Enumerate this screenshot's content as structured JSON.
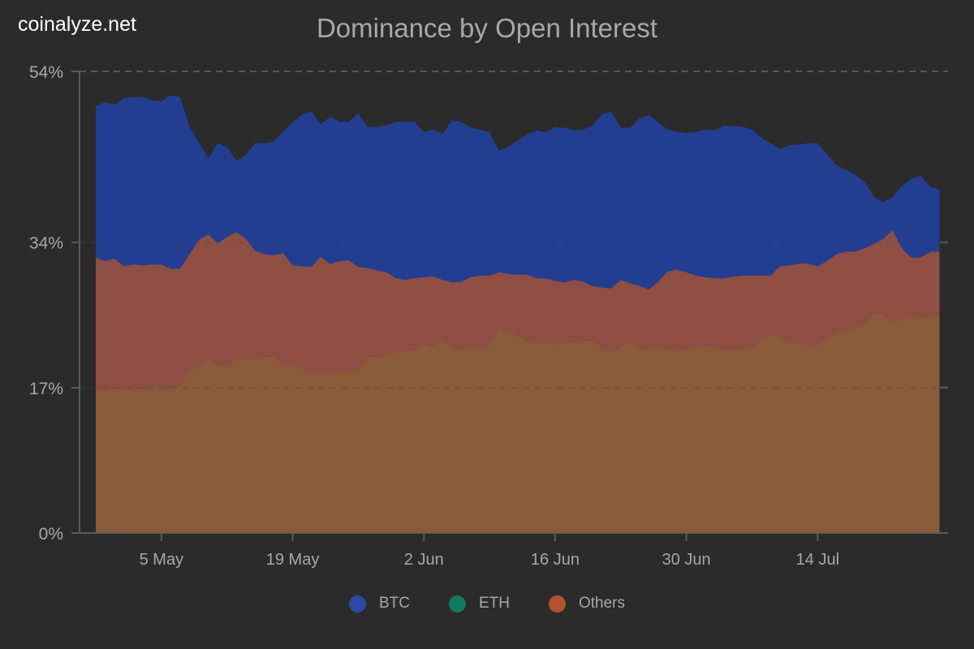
{
  "brand": "coinalyze.net",
  "chart_data": {
    "type": "area",
    "title": "Dominance by Open Interest",
    "xlabel": "",
    "ylabel": "",
    "ylim": [
      0,
      54
    ],
    "y_ticks": [
      "0%",
      "17%",
      "34%",
      "54%"
    ],
    "y_tick_values": [
      0,
      17,
      34,
      54
    ],
    "x_ticks": [
      "5 May",
      "19 May",
      "2 Jun",
      "16 Jun",
      "30 Jun",
      "14 Jul"
    ],
    "x_tick_dates": [
      "5 May",
      "19 May",
      "2 Jun",
      "16 Jun",
      "30 Jun",
      "14 Jul"
    ],
    "grid": "dashed line at top only",
    "legend_position": "bottom",
    "x": [
      "28 Apr",
      "29 Apr",
      "30 Apr",
      "1 May",
      "2 May",
      "3 May",
      "4 May",
      "5 May",
      "6 May",
      "7 May",
      "8 May",
      "9 May",
      "10 May",
      "11 May",
      "12 May",
      "13 May",
      "14 May",
      "15 May",
      "16 May",
      "17 May",
      "18 May",
      "19 May",
      "20 May",
      "21 May",
      "22 May",
      "23 May",
      "24 May",
      "25 May",
      "26 May",
      "27 May",
      "28 May",
      "29 May",
      "30 May",
      "31 May",
      "1 Jun",
      "2 Jun",
      "3 Jun",
      "4 Jun",
      "5 Jun",
      "6 Jun",
      "7 Jun",
      "8 Jun",
      "9 Jun",
      "10 Jun",
      "11 Jun",
      "12 Jun",
      "13 Jun",
      "14 Jun",
      "15 Jun",
      "16 Jun",
      "17 Jun",
      "18 Jun",
      "19 Jun",
      "20 Jun",
      "21 Jun",
      "22 Jun",
      "23 Jun",
      "24 Jun",
      "25 Jun",
      "26 Jun",
      "27 Jun",
      "28 Jun",
      "29 Jun",
      "30 Jun",
      "1 Jul",
      "2 Jul",
      "3 Jul",
      "4 Jul",
      "5 Jul",
      "6 Jul",
      "7 Jul",
      "8 Jul",
      "9 Jul",
      "10 Jul",
      "11 Jul",
      "12 Jul",
      "13 Jul",
      "14 Jul",
      "15 Jul",
      "16 Jul",
      "17 Jul",
      "18 Jul",
      "19 Jul",
      "20 Jul",
      "21 Jul",
      "22 Jul",
      "23 Jul",
      "24 Jul",
      "25 Jul",
      "26 Jul",
      "27 Jul"
    ],
    "series": [
      {
        "name": "BTC",
        "color": "#2d48a8",
        "fill": "#233e91",
        "values": [
          50.0,
          50.4,
          50.1,
          50.9,
          51.0,
          51.0,
          50.6,
          50.5,
          51.2,
          51.0,
          47.5,
          45.7,
          43.8,
          45.6,
          45.2,
          43.5,
          44.2,
          45.6,
          45.6,
          45.8,
          46.9,
          48.1,
          48.9,
          49.3,
          47.8,
          48.7,
          48.1,
          48.1,
          49.1,
          47.5,
          47.5,
          47.7,
          48.1,
          48.1,
          48.1,
          46.9,
          47.2,
          46.7,
          48.3,
          48.1,
          47.4,
          47.2,
          46.9,
          44.7,
          45.2,
          45.9,
          46.6,
          47.1,
          46.9,
          47.5,
          47.4,
          47.1,
          47.2,
          47.7,
          49.0,
          49.3,
          47.4,
          47.4,
          48.5,
          48.9,
          48.0,
          47.2,
          46.9,
          46.8,
          46.9,
          47.2,
          47.1,
          47.6,
          47.6,
          47.5,
          47.2,
          46.2,
          45.6,
          44.9,
          45.4,
          45.4,
          45.6,
          45.6,
          44.3,
          43.0,
          42.5,
          41.9,
          41.1,
          39.3,
          38.7,
          39.3,
          40.6,
          41.4,
          41.8,
          40.5,
          40.2
        ]
      },
      {
        "name": "ETH",
        "color": "#0f7a62",
        "fill": "#8a5a3a",
        "values": [
          16.7,
          16.6,
          16.8,
          16.9,
          16.7,
          16.9,
          17.0,
          17.1,
          16.9,
          17.1,
          19.0,
          19.4,
          20.3,
          19.6,
          19.4,
          20.3,
          20.3,
          20.3,
          20.6,
          20.6,
          19.4,
          19.8,
          19.2,
          18.7,
          18.7,
          18.7,
          19.0,
          18.9,
          18.7,
          20.6,
          20.6,
          20.8,
          21.1,
          21.3,
          21.3,
          22.2,
          21.8,
          22.7,
          21.4,
          21.5,
          21.7,
          21.5,
          22.0,
          23.9,
          23.6,
          23.0,
          22.3,
          22.2,
          22.2,
          22.0,
          22.2,
          22.3,
          22.5,
          22.5,
          21.5,
          21.1,
          21.8,
          22.3,
          21.5,
          21.5,
          21.7,
          21.4,
          21.3,
          21.5,
          21.7,
          21.8,
          21.6,
          21.4,
          21.4,
          21.4,
          21.6,
          22.7,
          23.1,
          22.9,
          22.3,
          22.1,
          22.0,
          22.0,
          22.8,
          23.3,
          23.5,
          23.9,
          24.4,
          25.7,
          25.5,
          24.5,
          25.1,
          25.4,
          25.1,
          25.4,
          25.6
        ]
      },
      {
        "name": "Others",
        "color": "#b5532a",
        "fill": "#8e4e43",
        "values": [
          32.2,
          31.8,
          32.1,
          31.2,
          31.4,
          31.3,
          31.4,
          31.4,
          30.9,
          30.9,
          32.6,
          34.3,
          34.9,
          33.9,
          34.6,
          35.2,
          34.4,
          33.0,
          32.6,
          32.5,
          32.7,
          31.3,
          31.2,
          31.1,
          32.3,
          31.5,
          31.8,
          31.9,
          31.1,
          31.0,
          30.7,
          30.5,
          29.8,
          29.6,
          29.8,
          29.9,
          30.0,
          29.6,
          29.3,
          29.4,
          29.9,
          30.1,
          30.1,
          30.5,
          30.3,
          30.2,
          30.2,
          29.8,
          29.8,
          29.5,
          29.3,
          29.6,
          29.4,
          28.9,
          28.7,
          28.6,
          29.6,
          29.2,
          28.9,
          28.5,
          29.4,
          30.6,
          30.8,
          30.5,
          30.1,
          29.9,
          29.8,
          29.8,
          30.0,
          30.1,
          30.1,
          30.1,
          30.1,
          31.2,
          31.3,
          31.5,
          31.5,
          31.2,
          31.8,
          32.6,
          32.9,
          32.9,
          33.3,
          33.8,
          34.4,
          35.4,
          33.3,
          32.2,
          32.2,
          32.9,
          32.9
        ]
      }
    ]
  }
}
